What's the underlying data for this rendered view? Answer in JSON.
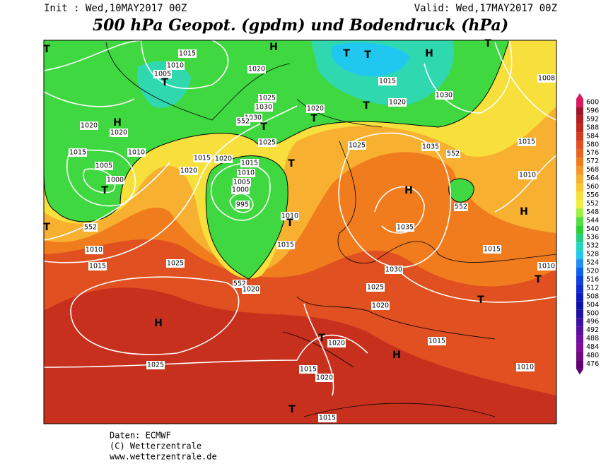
{
  "header": {
    "init": "Init : Wed,10MAY2017 00Z",
    "valid": "Valid: Wed,17MAY2017 00Z",
    "title": "500 hPa Geopot. (gpdm) und Bodendruck (hPa)"
  },
  "footer": [
    "Daten: ECMWF",
    "(C) Wetterzentrale",
    "www.wetterzentrale.de"
  ],
  "legend": {
    "levels": [
      600,
      596,
      592,
      588,
      584,
      580,
      576,
      572,
      568,
      564,
      560,
      556,
      552,
      548,
      544,
      540,
      536,
      532,
      528,
      524,
      520,
      516,
      512,
      508,
      504,
      500,
      496,
      492,
      488,
      484,
      480,
      476
    ],
    "colors": [
      "#d81b60",
      "#a0142a",
      "#b41e1e",
      "#c0281e",
      "#d23c1e",
      "#e05020",
      "#e8641e",
      "#f07c1e",
      "#f59628",
      "#f8b030",
      "#fac832",
      "#f8e03c",
      "#f0f03c",
      "#a0f040",
      "#50e040",
      "#28d030",
      "#20d080",
      "#20d8c0",
      "#20c8f0",
      "#2090f0",
      "#1060f0",
      "#1040e0",
      "#1028d0",
      "#1018c0",
      "#1010a8",
      "#2010a0",
      "#4010a0",
      "#5810a0",
      "#7010a0",
      "#800c98",
      "#700880",
      "#600070"
    ]
  },
  "map": {
    "labels": [
      "1015",
      "1010",
      "1005",
      "T",
      "1020",
      "H",
      "T",
      "T",
      "H",
      "T",
      "1015",
      "1030",
      "1020",
      "T",
      "1025",
      "1030",
      "1030",
      "T",
      "1020",
      "T",
      "1025",
      "H",
      "1020",
      "1020",
      "1015",
      "1010",
      "1005",
      "1000",
      "T",
      "1015",
      "1020",
      "1020",
      "1015",
      "1010",
      "1005",
      "1000",
      "995",
      "T",
      "1025",
      "1035",
      "H",
      "1035",
      "552",
      "552",
      "H",
      "1015",
      "1010",
      "552",
      "1010",
      "1015",
      "1025",
      "1010",
      "T",
      "1015",
      "552",
      "1020",
      "1030",
      "1025",
      "1020",
      "1015",
      "1010",
      "T",
      "T",
      "H",
      "T",
      "1020",
      "1015",
      "H",
      "1025",
      "1015",
      "1020",
      "1010",
      "T",
      "1015",
      "1008",
      "T",
      "T",
      "552"
    ]
  }
}
